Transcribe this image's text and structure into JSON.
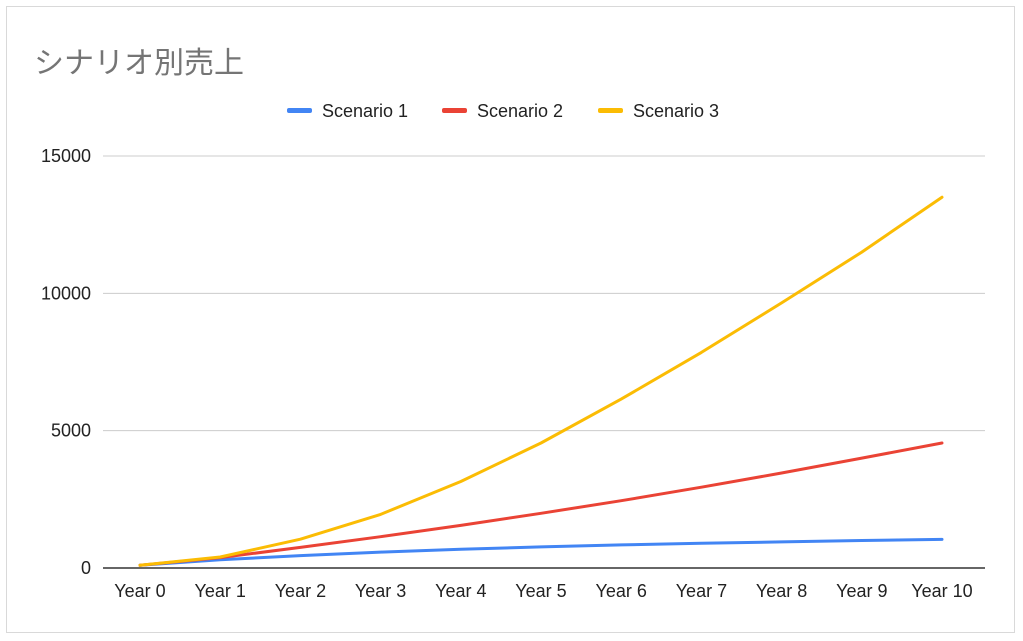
{
  "chart_data": {
    "type": "line",
    "title": "シナリオ別売上",
    "xlabel": "",
    "ylabel": "",
    "categories": [
      "Year 0",
      "Year 1",
      "Year 2",
      "Year 3",
      "Year 4",
      "Year 5",
      "Year 6",
      "Year 7",
      "Year 8",
      "Year 9",
      "Year 10"
    ],
    "ylim": [
      0,
      15000
    ],
    "yticks": [
      0,
      5000,
      10000,
      15000
    ],
    "grid": true,
    "legend_position": "top",
    "series": [
      {
        "name": "Scenario 1",
        "color": "#4285f4",
        "values": [
          100,
          300,
          450,
          580,
          680,
          770,
          840,
          900,
          950,
          1000,
          1040
        ]
      },
      {
        "name": "Scenario 2",
        "color": "#ea4335",
        "values": [
          100,
          380,
          750,
          1140,
          1550,
          1990,
          2450,
          2940,
          3460,
          4000,
          4550
        ]
      },
      {
        "name": "Scenario 3",
        "color": "#fbbc04",
        "values": [
          100,
          400,
          1050,
          1950,
          3150,
          4550,
          6150,
          7850,
          9650,
          11500,
          13500
        ]
      }
    ]
  }
}
